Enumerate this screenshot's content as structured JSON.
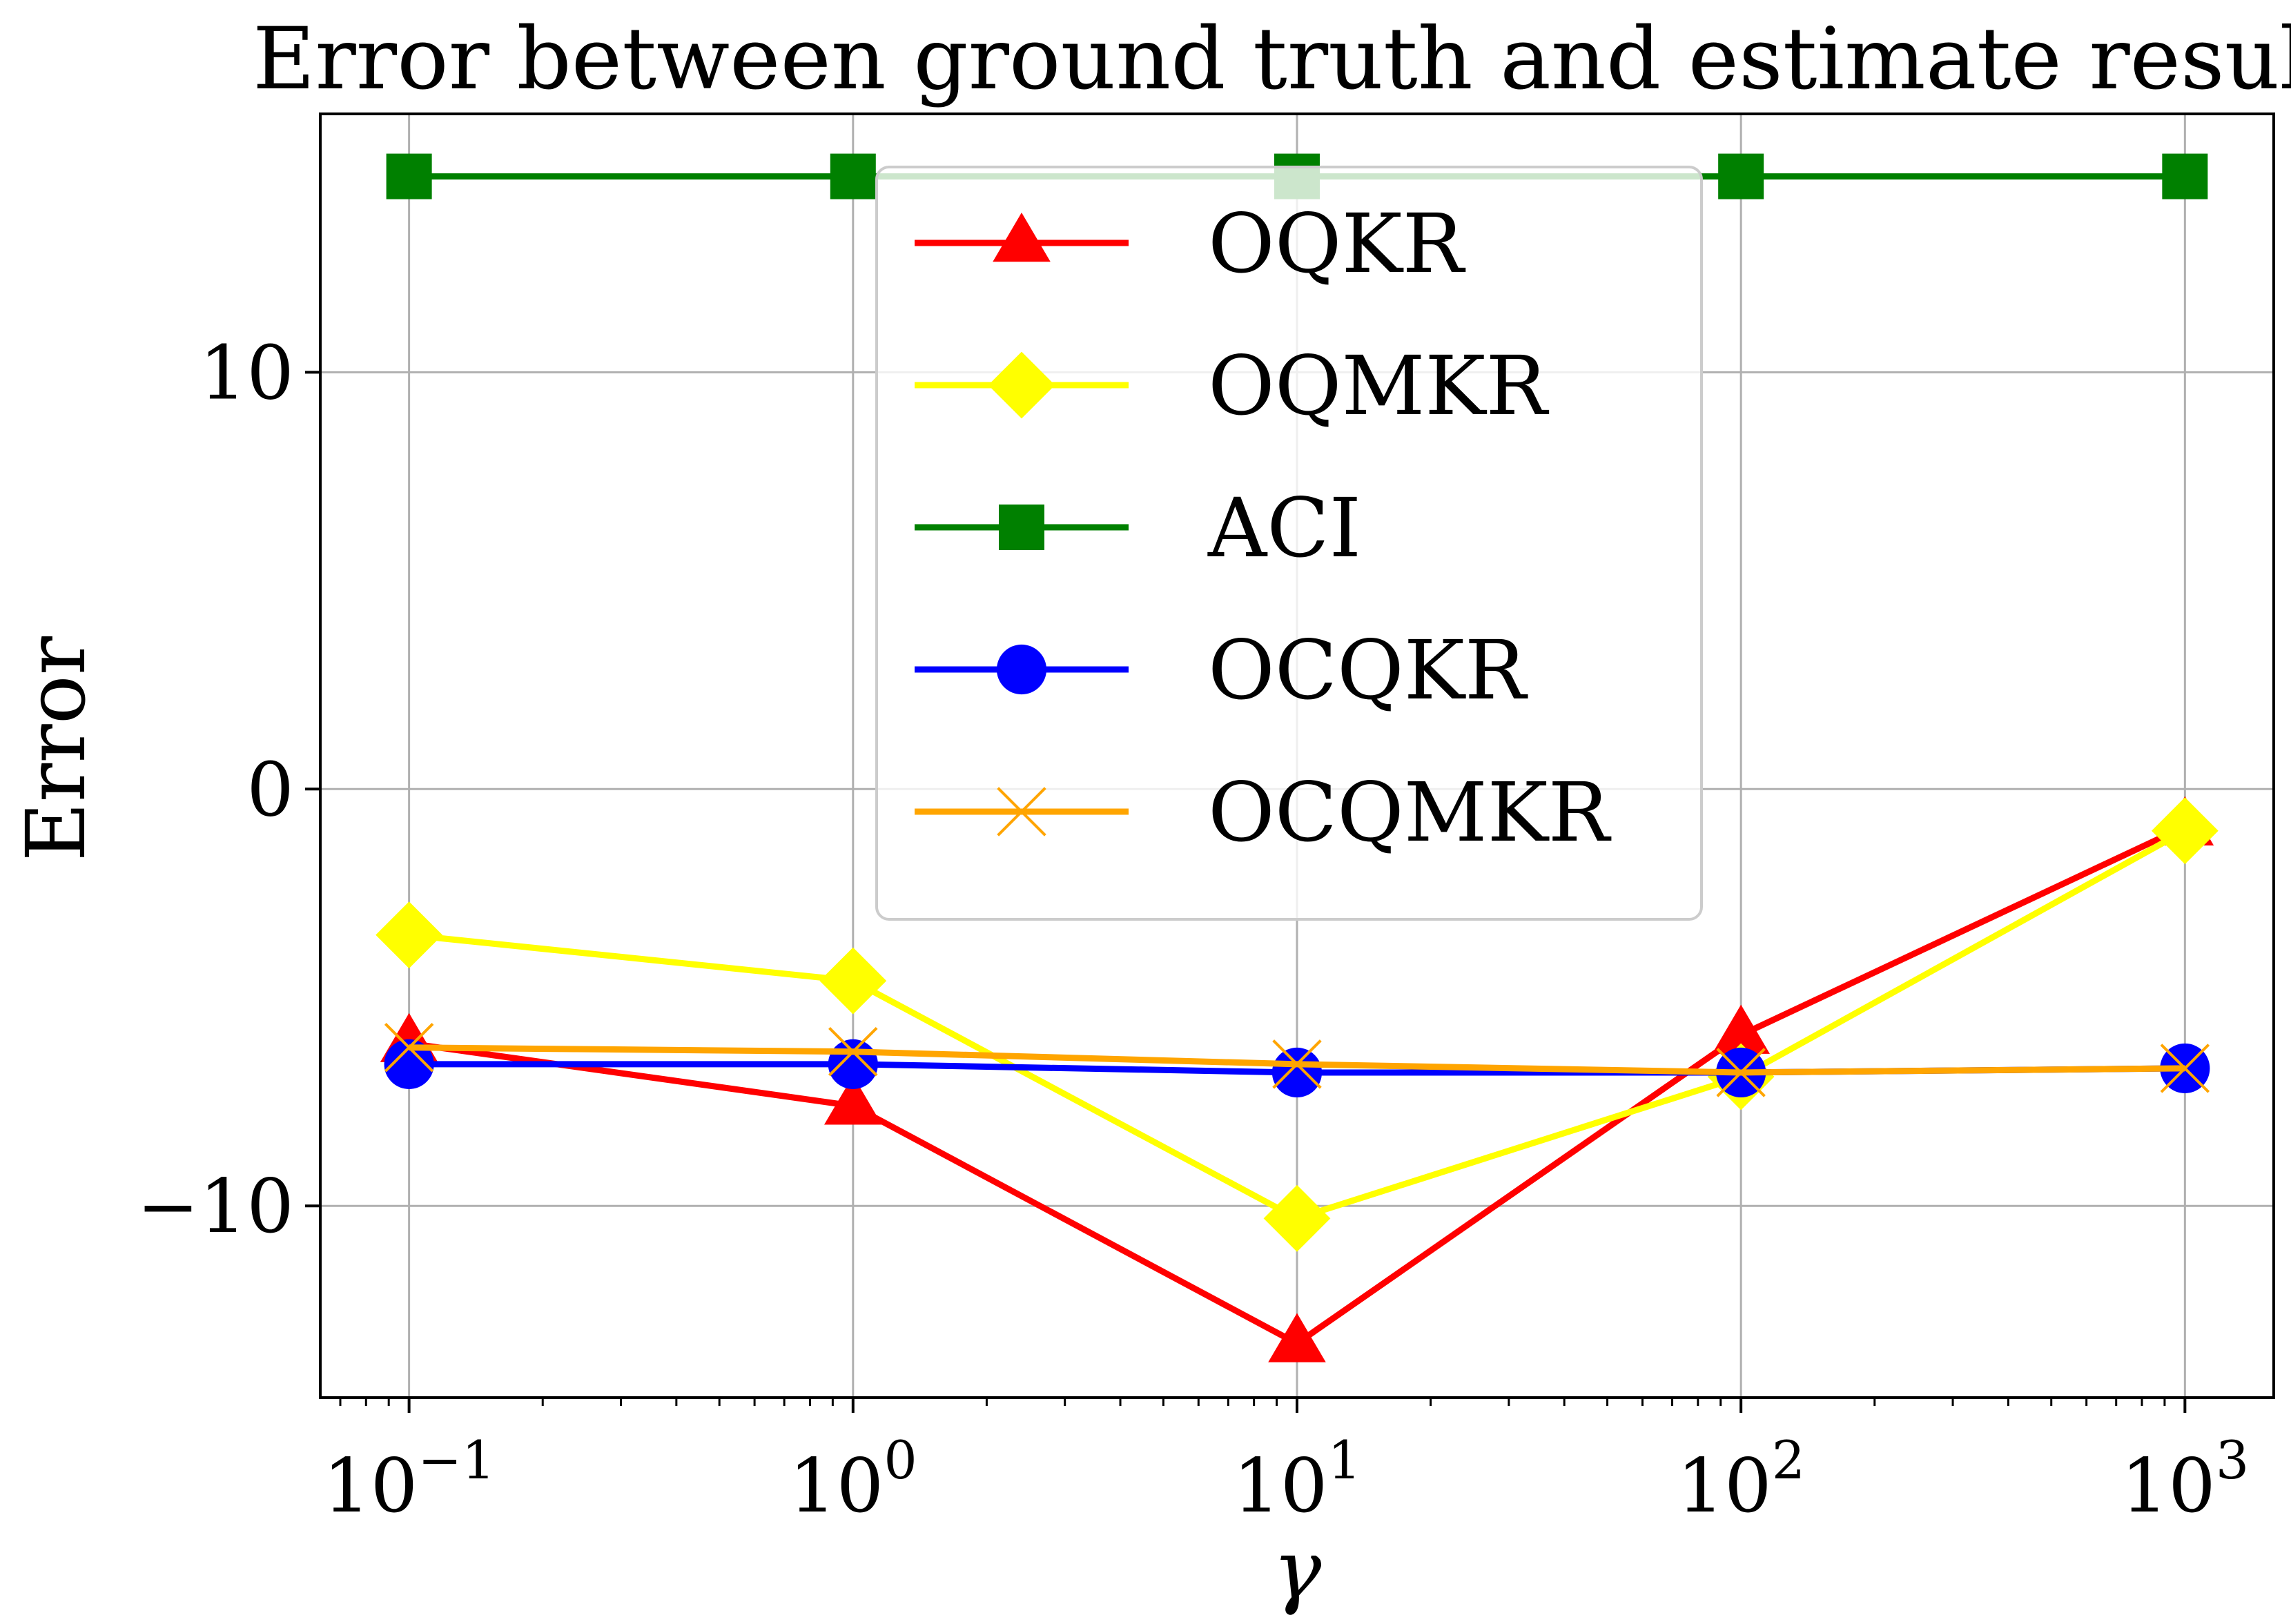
{
  "chart_data": {
    "type": "line",
    "title": "Error between ground truth and estimate result",
    "xlabel": "γ",
    "ylabel": "Error",
    "xscale": "log",
    "x": [
      0.1,
      1,
      10,
      100,
      1000
    ],
    "xtick_labels": [
      {
        "base": "10",
        "exp": "−1"
      },
      {
        "base": "10",
        "exp": "0"
      },
      {
        "base": "10",
        "exp": "1"
      },
      {
        "base": "10",
        "exp": "2"
      },
      {
        "base": "10",
        "exp": "3"
      }
    ],
    "xlim": [
      0.0631,
      1585
    ],
    "yticks": [
      -10,
      0,
      10
    ],
    "ytick_labels": [
      "−10",
      "0",
      "10"
    ],
    "ylim": [
      -14.6,
      16.2
    ],
    "grid": true,
    "legend_position": "upper-center",
    "series": [
      {
        "name": "OQKR",
        "color": "#ff0000",
        "marker": "triangle",
        "values": [
          -6.1,
          -7.6,
          -13.3,
          -5.9,
          -0.9
        ]
      },
      {
        "name": "OQMKR",
        "color": "#ffff00",
        "marker": "diamond",
        "values": [
          -3.5,
          -4.6,
          -10.3,
          -6.9,
          -1.0
        ]
      },
      {
        "name": "ACI",
        "color": "#008000",
        "marker": "square",
        "values": [
          14.7,
          14.7,
          14.7,
          14.7,
          14.7
        ]
      },
      {
        "name": "OCQKR",
        "color": "#0000ff",
        "marker": "circle",
        "values": [
          -6.6,
          -6.6,
          -6.8,
          -6.8,
          -6.7
        ]
      },
      {
        "name": "OCQMKR",
        "color": "#ffa500",
        "marker": "x",
        "values": [
          -6.2,
          -6.3,
          -6.6,
          -6.8,
          -6.7
        ]
      }
    ]
  }
}
